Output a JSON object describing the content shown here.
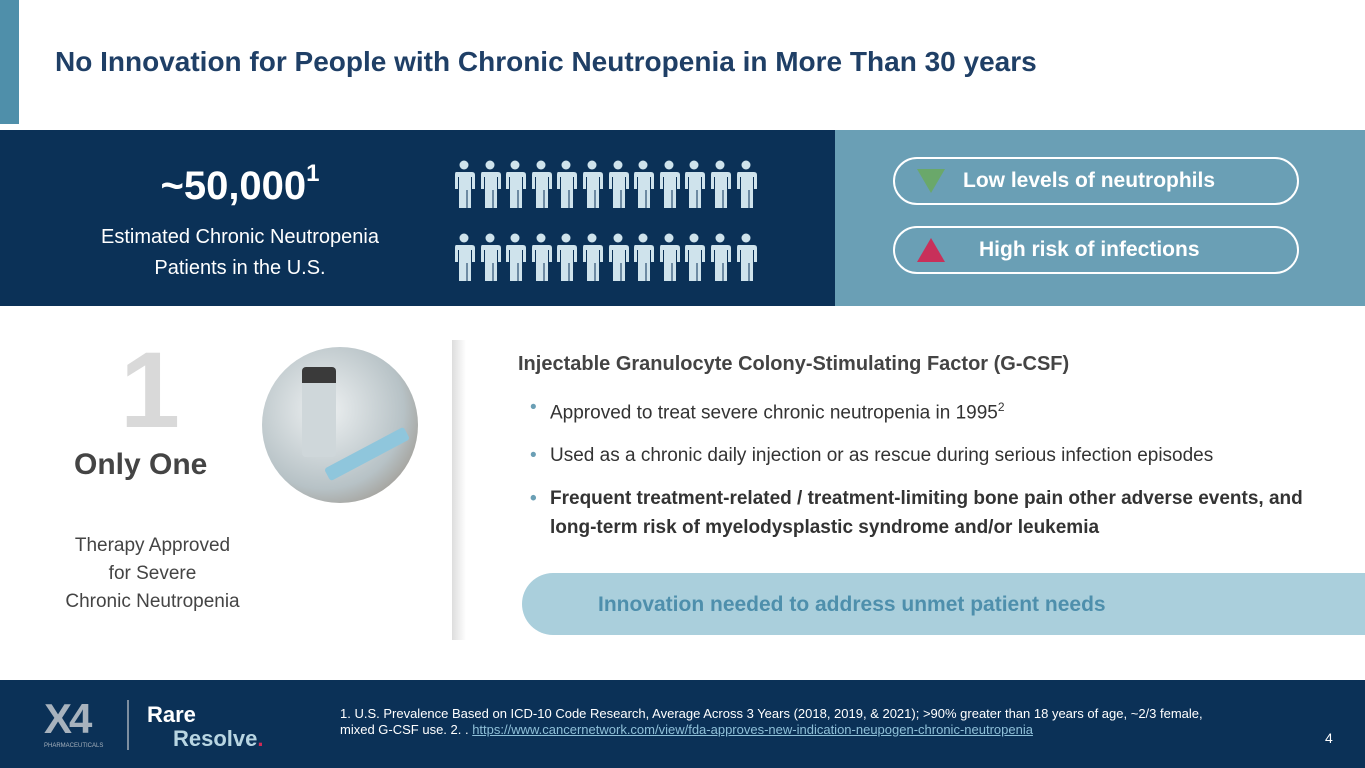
{
  "title": "No Innovation for People with Chronic Neutropenia in More Than 30 years",
  "stat": {
    "value": "~50,000",
    "sup": "1",
    "line1": "Estimated Chronic Neutropenia",
    "line2": "Patients in the U.S."
  },
  "people_icon_count": 24,
  "pills": [
    {
      "label": "Low levels of neutrophils",
      "icon": "down-triangle-icon",
      "color": "#6aa86a"
    },
    {
      "label": "High risk of infections",
      "icon": "up-triangle-icon",
      "color": "#c8305a"
    }
  ],
  "only_one": {
    "numeral": "1",
    "label": "Only One",
    "desc": [
      "Therapy Approved",
      "for Severe",
      "Chronic Neutropenia"
    ]
  },
  "gcsf": {
    "heading": "Injectable Granulocyte Colony-Stimulating Factor (G-CSF)",
    "bullets": [
      {
        "text": "Approved to treat severe chronic neutropenia in 1995",
        "sup": "2"
      },
      {
        "text": "Used as a chronic daily injection or as rescue during serious infection episodes"
      },
      {
        "text": "Frequent treatment-related / treatment-limiting bone pain other adverse events, and long-term risk of myelodysplastic syndrome and/or leukemia"
      }
    ]
  },
  "callout": "Innovation needed to address unmet patient needs",
  "footer": {
    "logo_x4": "X4",
    "logo_pharma": "PHARMACEUTICALS",
    "rare": "Rare",
    "resolve": "Resolve",
    "dot": ".",
    "footnote": "1. U.S. Prevalence Based on ICD-10 Code Research, Average Across 3 Years (2018, 2019, & 2021); >90% greater than 18 years of age, ~2/3 female, mixed G-CSF use. 2. . ",
    "link": "https://www.cancernetwork.com/view/fda-approves-new-indication-neupogen-chronic-neutropenia",
    "page": "4"
  }
}
